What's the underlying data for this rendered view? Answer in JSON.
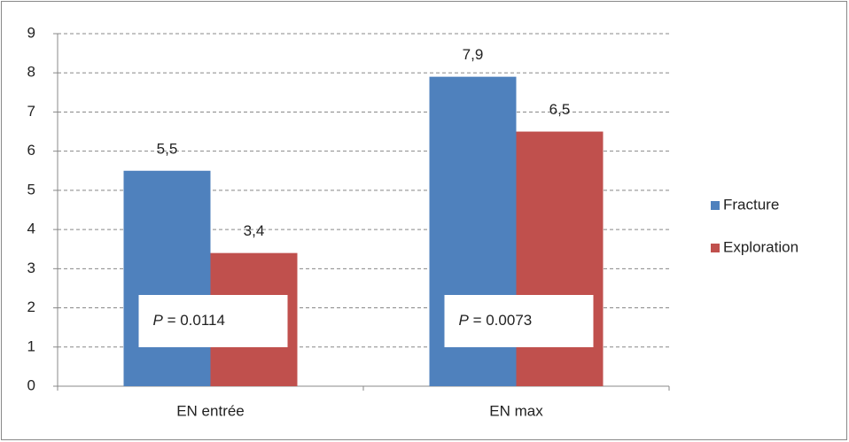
{
  "chart_data": {
    "type": "bar",
    "categories": [
      "EN entrée",
      "EN max"
    ],
    "series": [
      {
        "name": "Fracture",
        "color": "#4f81bd",
        "values": [
          5.5,
          7.9
        ],
        "value_labels": [
          "5,5",
          "7,9"
        ]
      },
      {
        "name": "Exploration",
        "color": "#c0504d",
        "values": [
          3.4,
          6.5
        ],
        "value_labels": [
          "3,4",
          "6,5"
        ]
      }
    ],
    "ylim": [
      0,
      9
    ],
    "yticks": [
      0,
      1,
      2,
      3,
      4,
      5,
      6,
      7,
      8,
      9
    ],
    "grid": true,
    "legend": "right",
    "annotations": [
      {
        "label": "P",
        "text": "= 0.0114"
      },
      {
        "label": "P",
        "text": "= 0.0073"
      }
    ]
  }
}
